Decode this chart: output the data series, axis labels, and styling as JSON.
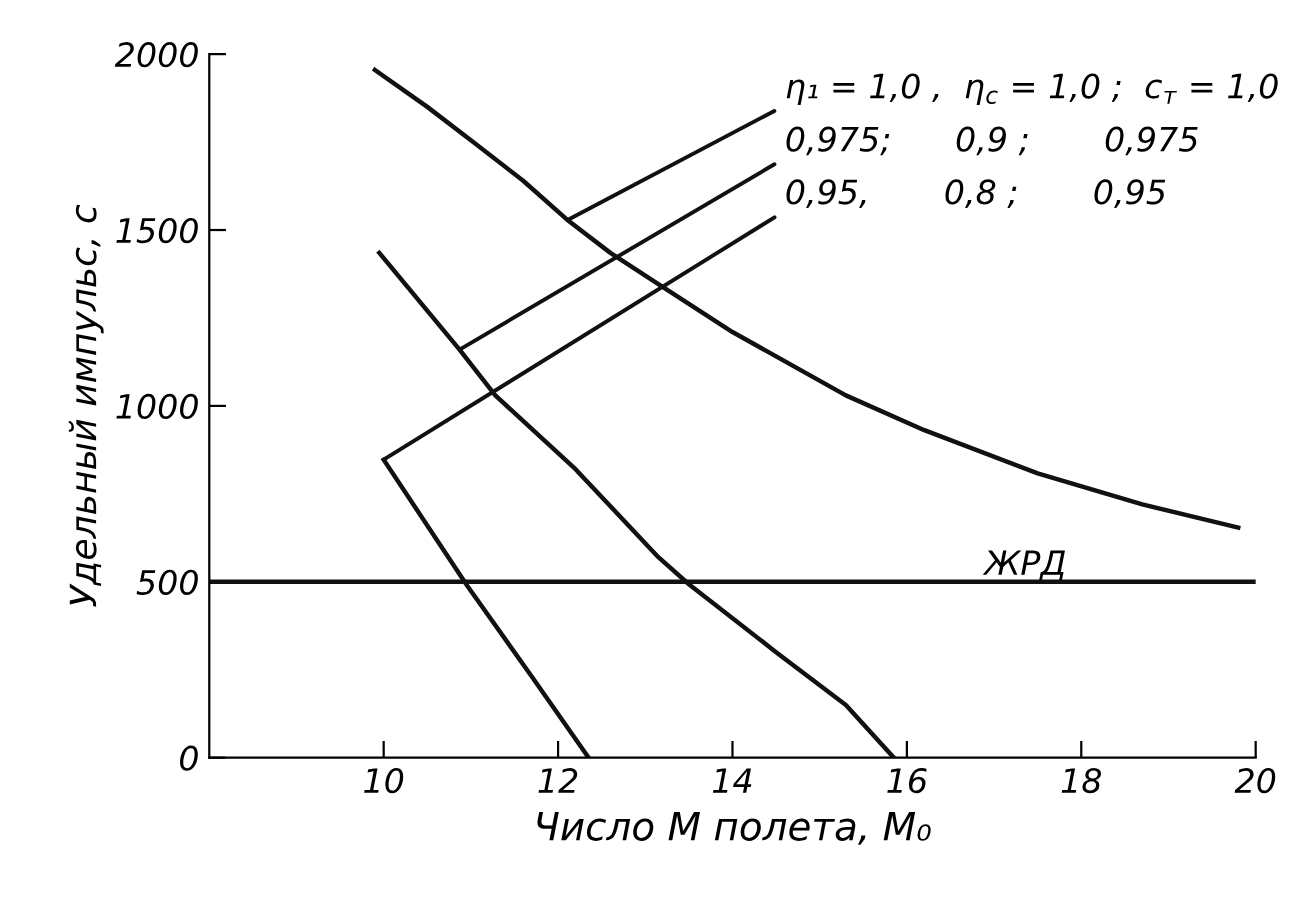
{
  "chart_data": {
    "type": "line",
    "xlabel": "Число М полета, M₀",
    "ylabel": "Удельный импульс, с",
    "xlim": [
      8,
      20
    ],
    "xticks": [
      10,
      12,
      14,
      16,
      18,
      20
    ],
    "ylim": [
      0,
      2000
    ],
    "yticks": [
      0,
      500,
      1000,
      1500,
      2000
    ],
    "grid": false,
    "marker": "none",
    "line_style": "solid",
    "series": [
      {
        "color": "#111111",
        "x": [
          9.9,
          10.5,
          11.0,
          11.6,
          12.1,
          12.6,
          13.15,
          14.0,
          15.3,
          16.2,
          17.5,
          18.7,
          19.8
        ],
        "values": [
          1955,
          1850,
          1755,
          1640,
          1530,
          1435,
          1346,
          1210,
          1030,
          931,
          808,
          720,
          654
        ]
      },
      {
        "color": "#111111",
        "x": [
          9.95,
          10.87,
          11.28,
          12.2,
          13.15,
          13.5,
          14.5,
          15.3,
          15.85
        ],
        "values": [
          1435,
          1160,
          1030,
          820,
          570,
          493,
          300,
          150,
          0
        ]
      },
      {
        "color": "#111111",
        "x": [
          10.0,
          10.96,
          11.7,
          12.35
        ],
        "values": [
          847,
          488,
          230,
          0
        ]
      }
    ],
    "annotations": [
      {
        "text": "η₁ = 1,0 ,  η$_{c}$ = 1,0 ;  c$_{т}$ = 1,0",
        "x": 12.12,
        "y": 1530
      },
      {
        "text": "0,975;      0,9 ;       0,975",
        "x": 10.87,
        "y": 1160
      },
      {
        "text": "0,95,       0,8 ;       0,95",
        "x": 10.0,
        "y": 847
      }
    ],
    "ref_lines": [
      {
        "axis": "y",
        "value": 500,
        "label": "ЖРД",
        "color": "#111111",
        "line_style": "solid"
      }
    ]
  }
}
